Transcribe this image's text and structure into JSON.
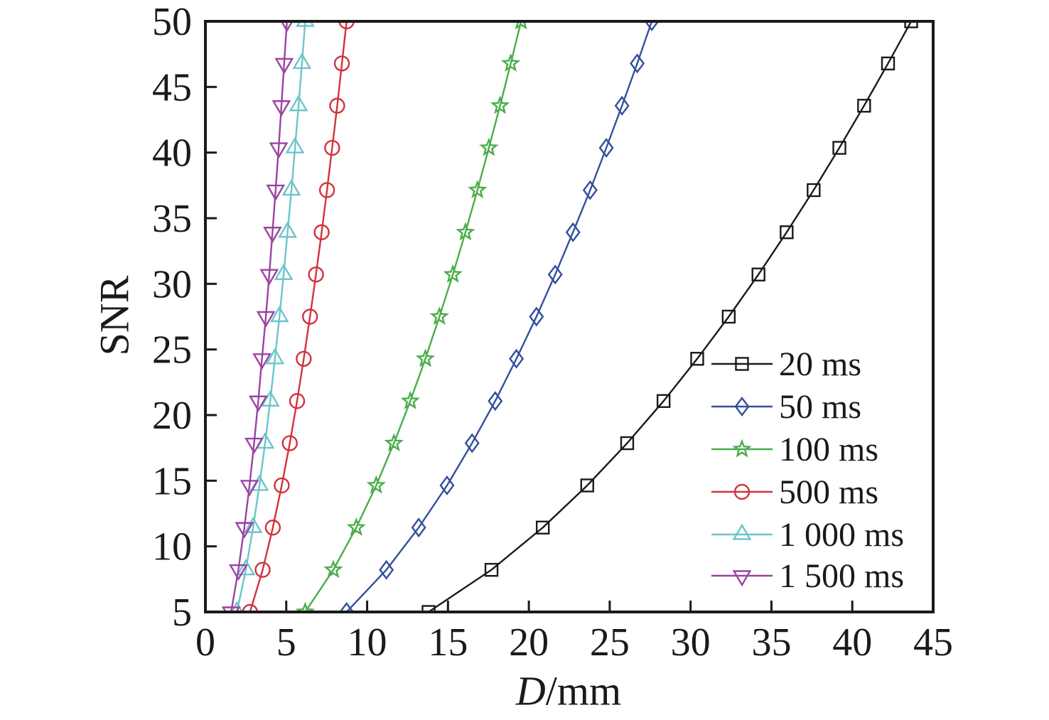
{
  "chart_data": {
    "type": "line",
    "title": "",
    "ylabel": "SNR",
    "xlabel_var": "D",
    "xlabel_unit": "/mm",
    "xlim": [
      0,
      45
    ],
    "ylim": [
      5,
      50
    ],
    "xticks": [
      0,
      5,
      10,
      15,
      20,
      25,
      30,
      35,
      40,
      45
    ],
    "yticks": [
      5,
      10,
      15,
      20,
      25,
      30,
      35,
      40,
      45,
      50
    ],
    "grid": false,
    "legend_position": "inside-lower-right",
    "axis_color": "#1a1a1a",
    "snr_values": [
      5,
      8.21,
      11.43,
      14.64,
      17.86,
      21.07,
      24.29,
      27.5,
      30.71,
      33.93,
      37.14,
      40.36,
      43.57,
      46.79,
      50
    ],
    "series": [
      {
        "name": "20 ms",
        "color": "#1a1a1a",
        "marker": "square",
        "d_values": [
          13.8,
          17.69,
          20.86,
          23.61,
          26.08,
          28.33,
          30.41,
          32.36,
          34.2,
          35.94,
          37.61,
          39.2,
          40.73,
          42.21,
          43.64
        ]
      },
      {
        "name": "50 ms",
        "color": "#33509d",
        "marker": "diamond",
        "d_values": [
          8.73,
          11.19,
          13.19,
          14.94,
          16.49,
          17.92,
          19.23,
          20.47,
          21.63,
          22.73,
          23.79,
          24.79,
          25.76,
          26.7,
          27.6
        ]
      },
      {
        "name": "100 ms",
        "color": "#4aad4a",
        "marker": "star",
        "d_values": [
          6.17,
          7.91,
          9.33,
          10.56,
          11.66,
          12.67,
          13.6,
          14.47,
          15.3,
          16.08,
          16.82,
          17.53,
          18.22,
          18.88,
          19.52
        ]
      },
      {
        "name": "500 ms",
        "color": "#d2323c",
        "marker": "circle",
        "d_values": [
          2.76,
          3.54,
          4.17,
          4.72,
          5.22,
          5.67,
          6.08,
          6.47,
          6.84,
          7.19,
          7.52,
          7.84,
          8.15,
          8.44,
          8.73
        ]
      },
      {
        "name": "1 000 ms",
        "color": "#6cc5cb",
        "marker": "triangle-up",
        "d_values": [
          1.95,
          2.5,
          2.95,
          3.34,
          3.69,
          4.01,
          4.3,
          4.58,
          4.84,
          5.08,
          5.32,
          5.54,
          5.76,
          5.97,
          6.17
        ]
      },
      {
        "name": "1 500 ms",
        "color": "#9c42a3",
        "marker": "triangle-down",
        "d_values": [
          1.59,
          2.04,
          2.41,
          2.73,
          3.01,
          3.27,
          3.5,
          3.74,
          3.95,
          4.15,
          4.34,
          4.53,
          4.7,
          4.87,
          5.04
        ]
      }
    ]
  }
}
